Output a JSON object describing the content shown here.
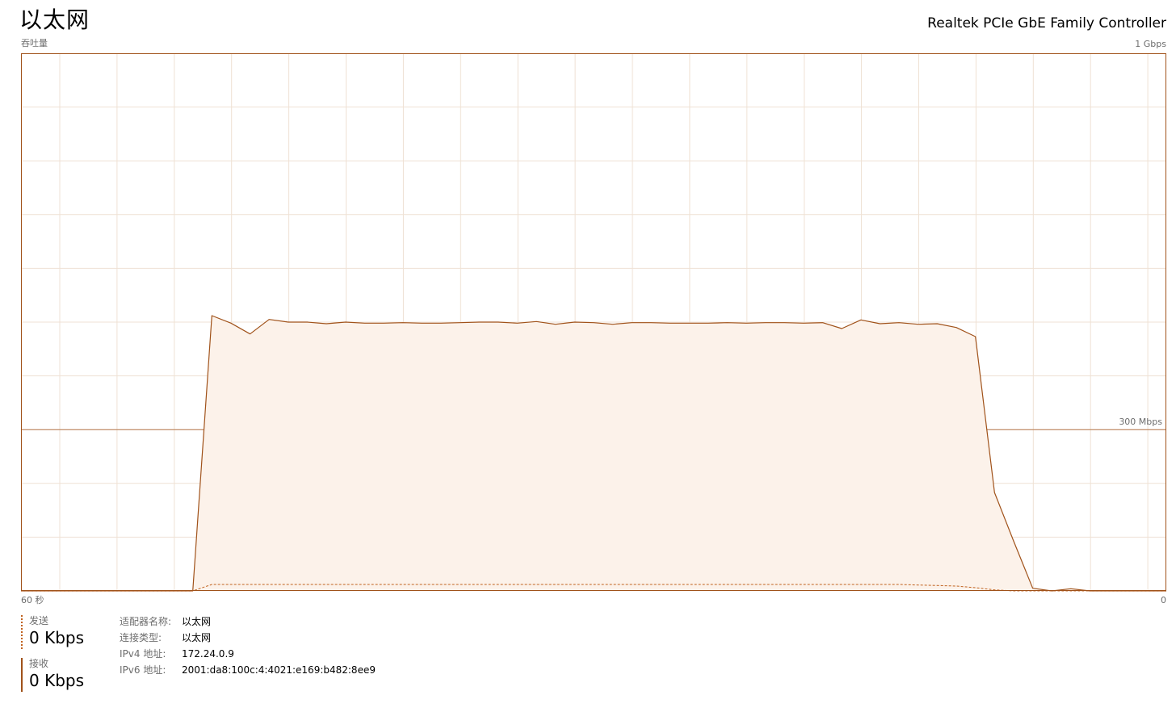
{
  "header": {
    "title": "以太网",
    "adapter_name": "Realtek PCIe GbE Family Controller"
  },
  "chart_labels": {
    "throughput_label": "吞吐量",
    "max_scale": "1 Gbps",
    "ref_line_label": "300 Mbps",
    "time_span": "60 秒",
    "time_end": "0"
  },
  "stats": {
    "send": {
      "label": "发送",
      "value": "0 Kbps"
    },
    "receive": {
      "label": "接收",
      "value": "0 Kbps"
    }
  },
  "details": [
    {
      "key": "适配器名称:",
      "value": "以太网"
    },
    {
      "key": "连接类型:",
      "value": "以太网"
    },
    {
      "key": "IPv4 地址:",
      "value": "172.24.0.9"
    },
    {
      "key": "IPv6 地址:",
      "value": "2001:da8:100c:4:4021:e169:b482:8ee9"
    }
  ],
  "colors": {
    "accent": "#a0521a",
    "fill": "#fcf2ea",
    "grid": "#efe1d4",
    "border": "#a0521a"
  },
  "chart_data": {
    "type": "area",
    "x_unit": "seconds ago",
    "xlim": [
      60,
      0
    ],
    "ylim_mbps": [
      0,
      1000
    ],
    "reference_line_mbps": 300,
    "series": [
      {
        "name": "接收",
        "style": "solid",
        "x": [
          60,
          59,
          58,
          57,
          56,
          55,
          54,
          53,
          52,
          51,
          50,
          49,
          48,
          47,
          46,
          45,
          44,
          43,
          42,
          41,
          40,
          39,
          38,
          37,
          36,
          35,
          34,
          33,
          32,
          31,
          30,
          29,
          28,
          27,
          26,
          25,
          24,
          23,
          22,
          21,
          20,
          19,
          18,
          17,
          16,
          15,
          14,
          13,
          12,
          11,
          10,
          9,
          8,
          7,
          6,
          5,
          4,
          3,
          2,
          1,
          0
        ],
        "values_mbps": [
          0,
          0,
          0,
          0,
          0,
          0,
          0,
          0,
          0,
          0,
          512,
          498,
          478,
          505,
          500,
          500,
          497,
          500,
          498,
          498,
          499,
          498,
          498,
          499,
          500,
          500,
          498,
          501,
          496,
          500,
          499,
          496,
          499,
          499,
          498,
          498,
          498,
          499,
          498,
          499,
          499,
          498,
          499,
          488,
          504,
          497,
          499,
          496,
          497,
          490,
          473,
          183,
          93,
          5,
          0,
          4,
          0,
          0,
          0,
          0,
          0
        ]
      },
      {
        "name": "发送",
        "style": "dashed",
        "x": [
          60,
          59,
          58,
          57,
          56,
          55,
          54,
          53,
          52,
          51,
          50,
          49,
          48,
          47,
          46,
          45,
          44,
          43,
          42,
          41,
          40,
          39,
          38,
          37,
          36,
          35,
          34,
          33,
          32,
          31,
          30,
          29,
          28,
          27,
          26,
          25,
          24,
          23,
          22,
          21,
          20,
          19,
          18,
          17,
          16,
          15,
          14,
          13,
          12,
          11,
          10,
          9,
          8,
          7,
          6,
          5,
          4,
          3,
          2,
          1,
          0
        ],
        "values_mbps": [
          0,
          0,
          0,
          0,
          0,
          0,
          0,
          0,
          0,
          0,
          12,
          12,
          12,
          12,
          12,
          12,
          12,
          12,
          12,
          12,
          12,
          12,
          12,
          12,
          12,
          12,
          12,
          12,
          12,
          12,
          12,
          12,
          12,
          12,
          12,
          12,
          12,
          12,
          12,
          12,
          12,
          12,
          12,
          12,
          12,
          12,
          12,
          11,
          10,
          9,
          6,
          2,
          0,
          0,
          0,
          0,
          0,
          0,
          0,
          0,
          0
        ]
      }
    ]
  }
}
